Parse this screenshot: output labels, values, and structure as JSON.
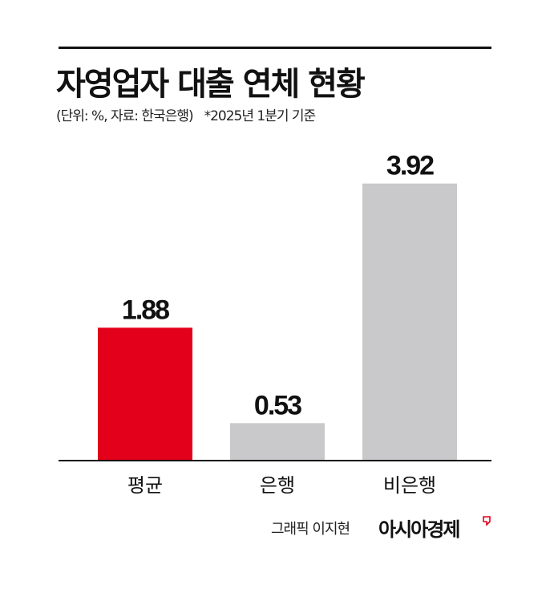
{
  "header": {
    "title": "자영업자 대출 연체 현황",
    "unit_source": "(단위: %, 자료: 한국은행)",
    "note": "*2025년 1분기 기준"
  },
  "footer": {
    "credit": "그래픽 이지현",
    "brand": "아시아경제"
  },
  "colors": {
    "highlight": "#e3001b",
    "bar": "#c9c9cb",
    "text": "#111111"
  },
  "chart_data": {
    "type": "bar",
    "title": "자영업자 대출 연체 현황",
    "subtitle": "(단위: %, 자료: 한국은행) *2025년 1분기 기준",
    "categories": [
      "평균",
      "은행",
      "비은행"
    ],
    "values": [
      1.88,
      0.53,
      3.92
    ],
    "value_labels": [
      "1.88",
      "0.53",
      "3.92"
    ],
    "highlight_index": 0,
    "xlabel": "",
    "ylabel": "",
    "ylim": [
      0,
      4.45
    ],
    "grid": false,
    "legend": "none"
  }
}
